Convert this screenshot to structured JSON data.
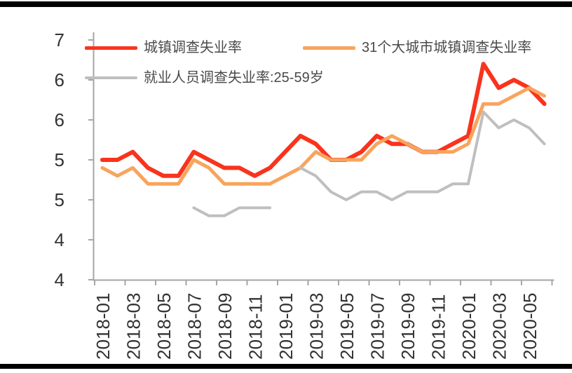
{
  "figure": {
    "top_rule": "divider",
    "bottom_rule": "divider",
    "rule_color": "#000000",
    "background_color": "#ffffff"
  },
  "chart_data": {
    "type": "line",
    "title": "",
    "xlabel": "",
    "ylabel": "",
    "grid": false,
    "legend_position": "top-left, two rows inside plot",
    "categories": [
      "2018-01",
      "2018-02",
      "2018-03",
      "2018-04",
      "2018-05",
      "2018-06",
      "2018-07",
      "2018-08",
      "2018-09",
      "2018-10",
      "2018-11",
      "2018-12",
      "2019-01",
      "2019-02",
      "2019-03",
      "2019-04",
      "2019-05",
      "2019-06",
      "2019-07",
      "2019-08",
      "2019-09",
      "2019-10",
      "2019-11",
      "2019-12",
      "2020-01",
      "2020-02",
      "2020-03",
      "2020-04",
      "2020-05",
      "2020-06"
    ],
    "x_tick_interval": 2,
    "x_tick_labels": [
      "2018-01",
      "2018-03",
      "2018-05",
      "2018-07",
      "2018-09",
      "2018-11",
      "2019-01",
      "2019-03",
      "2019-05",
      "2019-07",
      "2019-09",
      "2019-11",
      "2020-01",
      "2020-03",
      "2020-05"
    ],
    "y_axis": {
      "min": 4.0,
      "max": 7.0,
      "step": 0.5,
      "tick_values": [
        7.0,
        6.5,
        6.0,
        5.5,
        5.0,
        4.5,
        4.0
      ],
      "tick_labels": [
        "7",
        "6",
        "6",
        "5",
        "5",
        "4",
        "4"
      ]
    },
    "style": {
      "axis_color": "#A6A6A6",
      "tick_label_color": "#333333",
      "legend_text_color": "#4a4a4a"
    },
    "series": [
      {
        "name": "城镇调查失业率",
        "color": "#F9331D",
        "line_width": 6,
        "values": [
          5.5,
          5.5,
          5.6,
          5.4,
          5.3,
          5.3,
          5.6,
          5.5,
          5.4,
          5.4,
          5.3,
          5.4,
          5.6,
          5.8,
          5.7,
          5.5,
          5.5,
          5.6,
          5.8,
          5.7,
          5.7,
          5.6,
          5.6,
          5.7,
          5.8,
          6.7,
          6.4,
          6.5,
          6.4,
          6.2
        ]
      },
      {
        "name": "31个大城市城镇调查失业率",
        "color": "#F9A45C",
        "line_width": 5,
        "values": [
          5.4,
          5.3,
          5.4,
          5.2,
          5.2,
          5.2,
          5.5,
          5.4,
          5.2,
          5.2,
          5.2,
          5.2,
          5.3,
          5.4,
          5.6,
          5.5,
          5.5,
          5.5,
          5.7,
          5.8,
          5.7,
          5.6,
          5.6,
          5.6,
          5.7,
          6.2,
          6.2,
          6.3,
          6.4,
          6.3
        ]
      },
      {
        "name": "就业人员调查失业率:25-59岁",
        "color": "#BFBFBF",
        "line_width": 4,
        "values": [
          null,
          null,
          null,
          null,
          null,
          null,
          4.9,
          4.8,
          4.8,
          4.9,
          4.9,
          4.9,
          null,
          5.4,
          5.3,
          5.1,
          5.0,
          5.1,
          5.1,
          5.0,
          5.1,
          5.1,
          5.1,
          5.2,
          5.2,
          6.1,
          5.9,
          6.0,
          5.9,
          5.7
        ]
      }
    ]
  }
}
